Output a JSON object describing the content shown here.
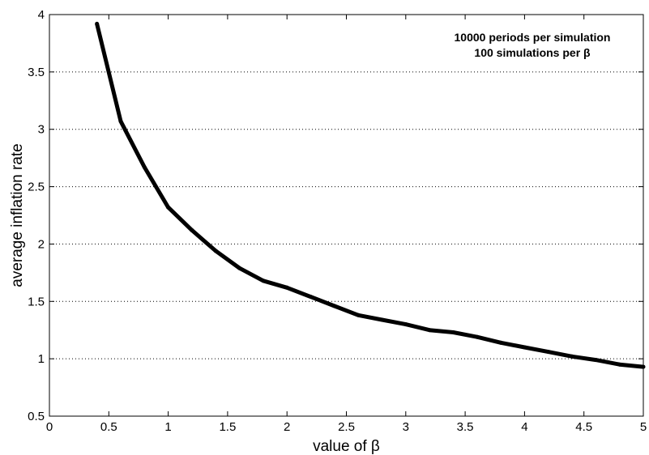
{
  "chart_data": {
    "type": "line",
    "title": "",
    "xlabel": "value of  β",
    "ylabel": "average  inflation rate",
    "xlim": [
      0,
      5
    ],
    "ylim": [
      0.5,
      4
    ],
    "grid": true,
    "line_color": "#000000",
    "x_ticks": [
      0,
      0.5,
      1,
      1.5,
      2,
      2.5,
      3,
      3.5,
      4,
      4.5,
      5
    ],
    "x_tick_labels": [
      "0",
      "0.5",
      "1",
      "1.5",
      "2",
      "2.5",
      "3",
      "3.5",
      "4",
      "4.5",
      "5"
    ],
    "y_ticks": [
      0.5,
      1,
      1.5,
      2,
      2.5,
      3,
      3.5,
      4
    ],
    "y_tick_labels": [
      "0.5",
      "1",
      "1.5",
      "2",
      "2.5",
      "3",
      "3.5",
      "4"
    ],
    "annotations": [
      "10000 periods per simulation",
      "100 simulations per β"
    ],
    "series": [
      {
        "x": [
          0.4,
          0.6,
          0.8,
          1.0,
          1.2,
          1.4,
          1.6,
          1.8,
          2.0,
          2.2,
          2.4,
          2.6,
          2.8,
          3.0,
          3.2,
          3.4,
          3.6,
          3.8,
          4.0,
          4.2,
          4.4,
          4.6,
          4.8,
          5.0
        ],
        "values": [
          3.92,
          3.07,
          2.67,
          2.32,
          2.12,
          1.94,
          1.79,
          1.68,
          1.62,
          1.54,
          1.46,
          1.38,
          1.34,
          1.3,
          1.25,
          1.23,
          1.19,
          1.14,
          1.1,
          1.06,
          1.02,
          0.99,
          0.95,
          0.93
        ]
      }
    ]
  }
}
